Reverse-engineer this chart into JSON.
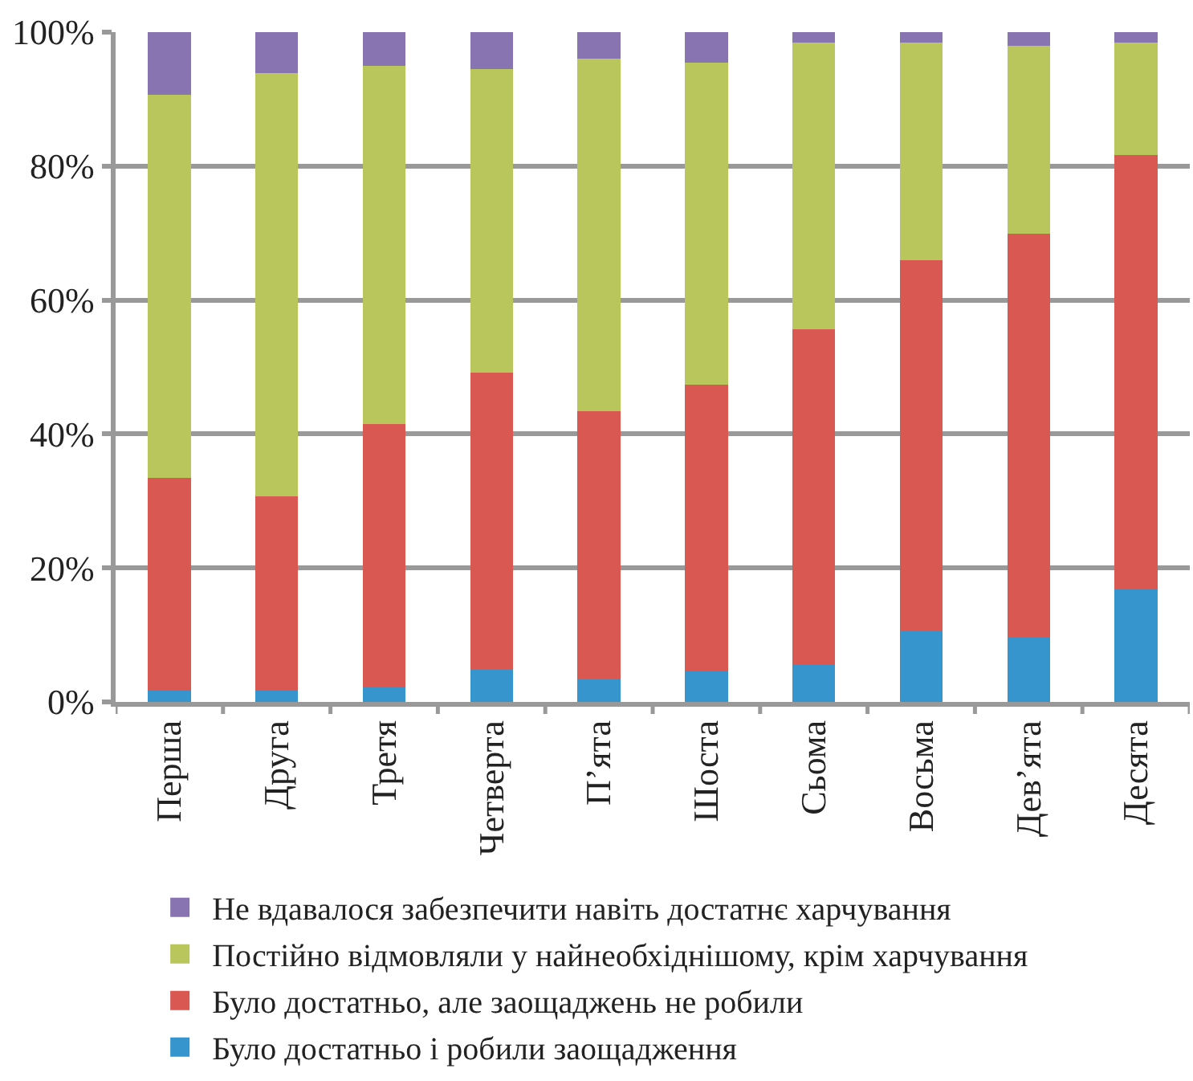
{
  "chart_data": {
    "type": "bar",
    "stacked": true,
    "categories": [
      "Перша",
      "Друга",
      "Третя",
      "Четверта",
      "П’ята",
      "Шоста",
      "Сьома",
      "Восьма",
      "Дев’ята",
      "Десята"
    ],
    "series": [
      {
        "name": "Було достатньо і робили заощадження",
        "color": "#3595cc",
        "values": [
          1.7,
          1.7,
          2.1,
          4.8,
          3.5,
          4.7,
          5.6,
          10.5,
          9.7,
          16.8
        ]
      },
      {
        "name": "Було достатньо, але заощаджень не робили",
        "color": "#d95852",
        "values": [
          31.7,
          29.0,
          39.4,
          44.4,
          39.9,
          42.7,
          50.0,
          55.5,
          60.2,
          64.8
        ]
      },
      {
        "name": "Постійно відмовляли у найнеобхіднішому, крім харчування",
        "color": "#b8c65b",
        "values": [
          57.2,
          63.2,
          53.5,
          45.3,
          52.7,
          48.1,
          42.8,
          32.4,
          28.1,
          16.8
        ]
      },
      {
        "name": "Не вдавалося забезпечити навіть достатнє харчування",
        "color": "#8874b0",
        "values": [
          9.4,
          6.1,
          5.0,
          5.5,
          3.9,
          4.5,
          1.6,
          1.6,
          2.0,
          1.6
        ]
      }
    ],
    "ylim": [
      0,
      100
    ],
    "yticks": [
      {
        "value": 0,
        "label": "0%"
      },
      {
        "value": 20,
        "label": "20%"
      },
      {
        "value": 40,
        "label": "40%"
      },
      {
        "value": 60,
        "label": "60%"
      },
      {
        "value": 80,
        "label": "80%"
      },
      {
        "value": 100,
        "label": "100%"
      }
    ],
    "grid": "y",
    "legend": "bottom"
  }
}
